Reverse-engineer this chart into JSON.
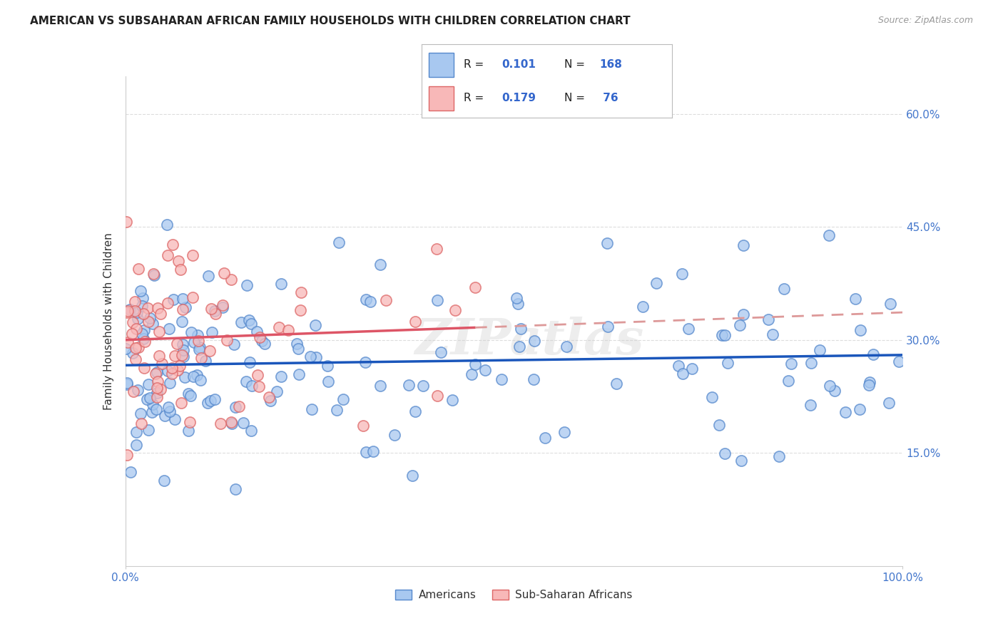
{
  "title": "AMERICAN VS SUBSAHARAN AFRICAN FAMILY HOUSEHOLDS WITH CHILDREN CORRELATION CHART",
  "source": "Source: ZipAtlas.com",
  "ylabel": "Family Households with Children",
  "xlim": [
    0,
    100
  ],
  "ylim": [
    0,
    65
  ],
  "ytick_positions": [
    15,
    30,
    45,
    60
  ],
  "ytick_labels": [
    "15.0%",
    "30.0%",
    "45.0%",
    "60.0%"
  ],
  "xtick_positions": [
    0,
    100
  ],
  "xtick_labels": [
    "0.0%",
    "100.0%"
  ],
  "legend_r1": "R = ",
  "legend_v1": "0.101",
  "legend_n1": "N = ",
  "legend_nv1": "168",
  "legend_r2": "R = ",
  "legend_v2": "0.179",
  "legend_n2": "N = ",
  "legend_nv2": " 76",
  "american_face": "#a8c8f0",
  "american_edge": "#5588cc",
  "subsaharan_face": "#f8b8b8",
  "subsaharan_edge": "#dd6666",
  "trendline_american_color": "#1a56bb",
  "trendline_subsaharan_solid_color": "#dd5566",
  "trendline_subsaharan_dash_color": "#dd9999",
  "grid_color": "#dddddd",
  "background_color": "#ffffff",
  "text_color": "#333333",
  "axis_label_color": "#4477cc",
  "watermark": "ZIPatlas",
  "legend_value_color": "#3366cc",
  "legend_n_value_color": "#3366cc",
  "dot_size": 120,
  "dot_alpha": 0.75,
  "sub_x_max": 45,
  "seed": 7777
}
